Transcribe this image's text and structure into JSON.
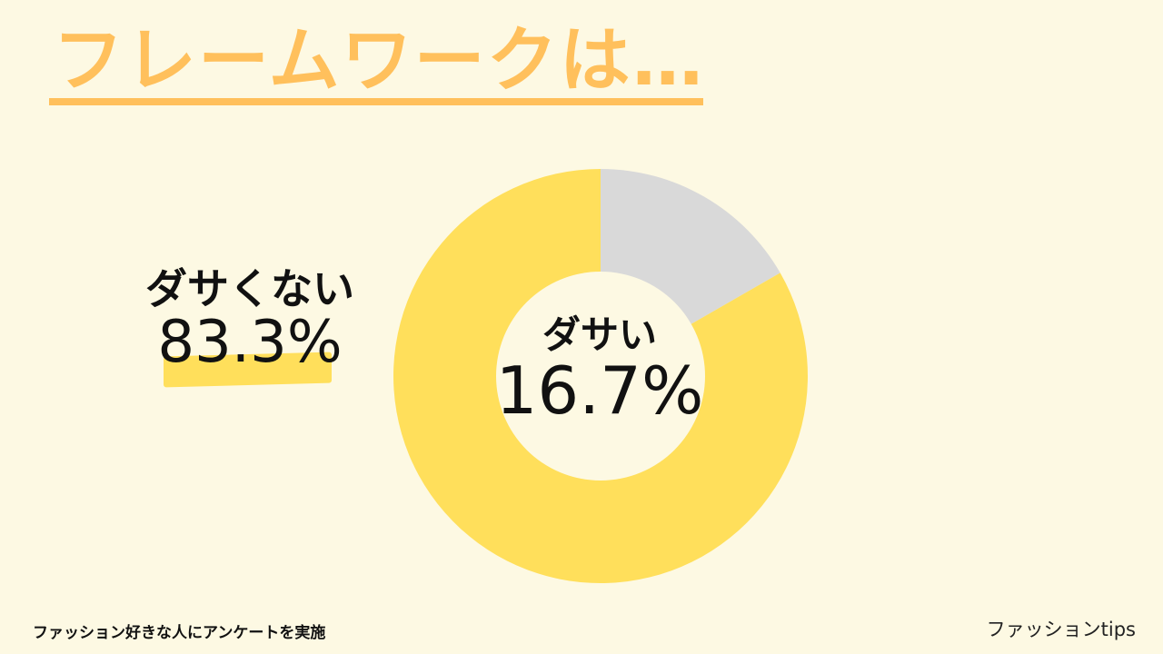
{
  "title": "フレームワークは…",
  "chart_data": {
    "type": "pie",
    "donut": true,
    "categories": [
      "ダサい",
      "ダサくない"
    ],
    "values": [
      16.7,
      83.3
    ],
    "colors": [
      "#D9D9D9",
      "#FFDF5B"
    ],
    "labels": {
      "dasai": {
        "label": "ダサい",
        "value": "16.7%"
      },
      "dasakunai": {
        "label": "ダサくない",
        "value": "83.3%"
      }
    }
  },
  "footer": {
    "note": "ファッション好きな人にアンケートを実施",
    "brand": "ファッションtips"
  }
}
